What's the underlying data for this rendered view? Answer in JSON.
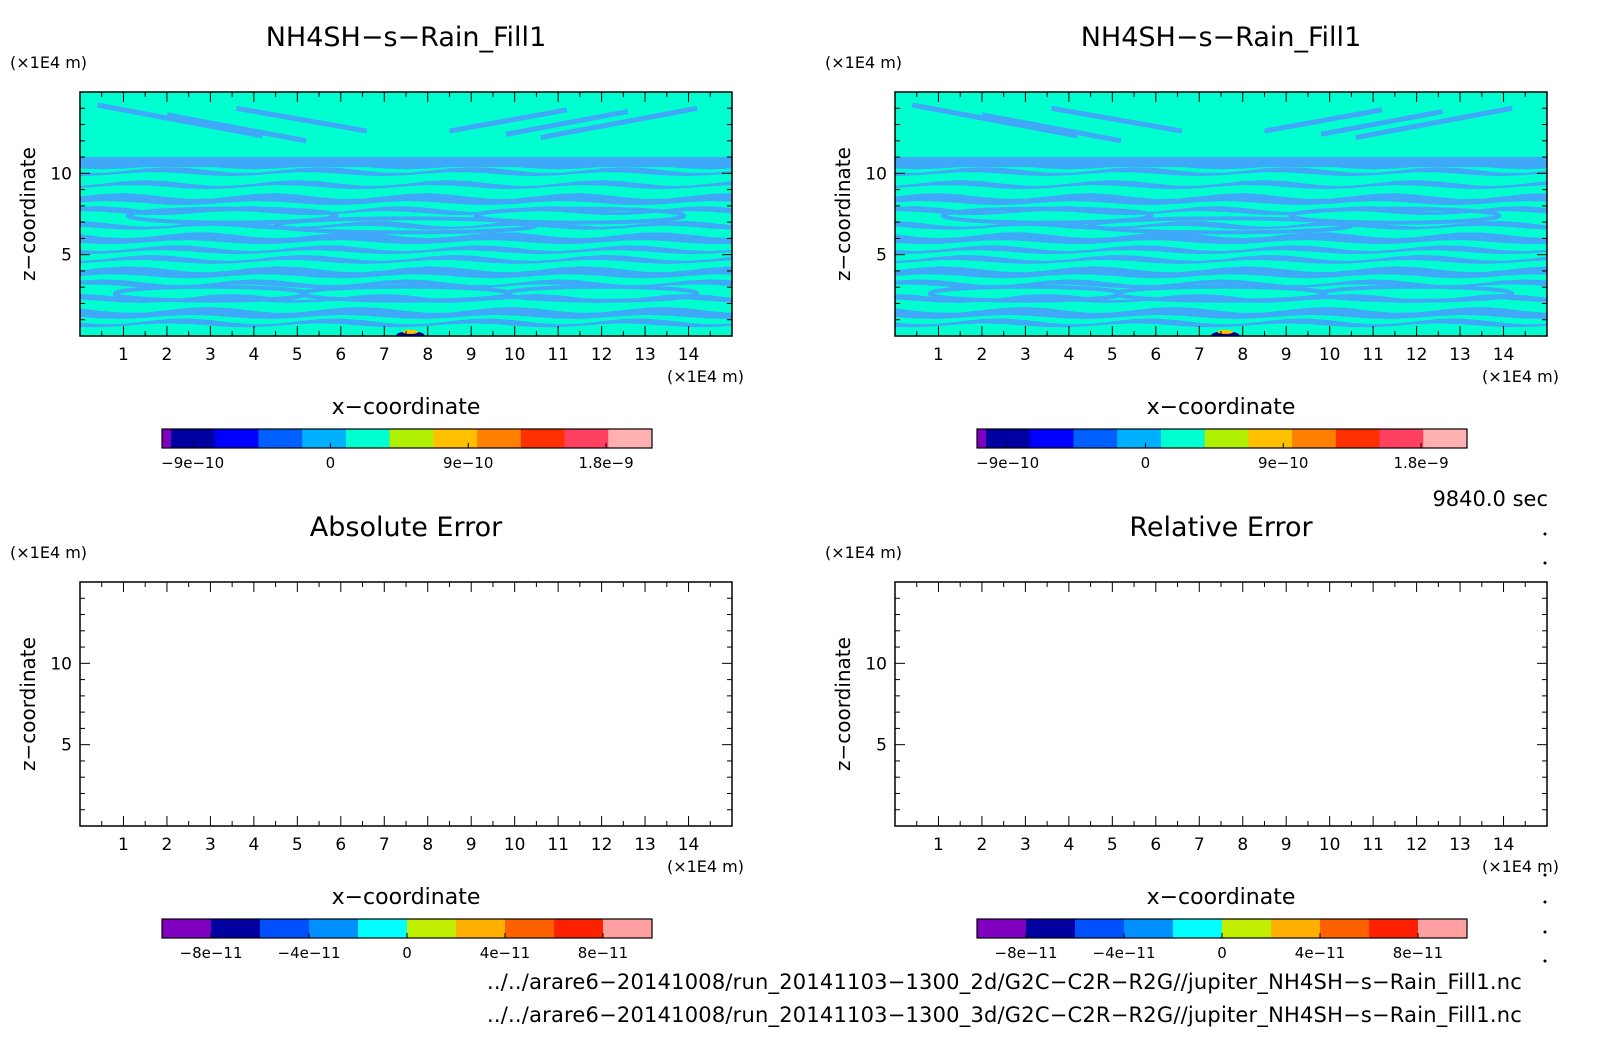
{
  "panels": [
    {
      "title": "NH4SH−s−Rain_Fill1",
      "xlabel": "x−coordinate",
      "ylabel": "z−coordinate",
      "x_unit": "(×1E4 m)",
      "y_unit": "(×1E4 m)",
      "x_ticks": [
        "1",
        "2",
        "3",
        "4",
        "5",
        "6",
        "7",
        "8",
        "9",
        "10",
        "11",
        "12",
        "13",
        "14"
      ],
      "y_ticks": [
        "5",
        "10"
      ],
      "filled": true,
      "colorbar_labels": [
        "−9e−10",
        "0",
        "9e−10",
        "1.8e−9"
      ]
    },
    {
      "title": "NH4SH−s−Rain_Fill1",
      "xlabel": "x−coordinate",
      "ylabel": "z−coordinate",
      "x_unit": "(×1E4 m)",
      "y_unit": "(×1E4 m)",
      "x_ticks": [
        "1",
        "2",
        "3",
        "4",
        "5",
        "6",
        "7",
        "8",
        "9",
        "10",
        "11",
        "12",
        "13",
        "14"
      ],
      "y_ticks": [
        "5",
        "10"
      ],
      "filled": true,
      "colorbar_labels": [
        "−9e−10",
        "0",
        "9e−10",
        "1.8e−9"
      ]
    },
    {
      "title": "Absolute Error",
      "xlabel": "x−coordinate",
      "ylabel": "z−coordinate",
      "x_unit": "(×1E4 m)",
      "y_unit": "(×1E4 m)",
      "x_ticks": [
        "1",
        "2",
        "3",
        "4",
        "5",
        "6",
        "7",
        "8",
        "9",
        "10",
        "11",
        "12",
        "13",
        "14"
      ],
      "y_ticks": [
        "5",
        "10"
      ],
      "filled": false,
      "colorbar_labels": [
        "−8e−11",
        "−4e−11",
        "0",
        "4e−11",
        "8e−11"
      ]
    },
    {
      "title": "Relative Error",
      "xlabel": "x−coordinate",
      "ylabel": "z−coordinate",
      "x_unit": "(×1E4 m)",
      "y_unit": "(×1E4 m)",
      "x_ticks": [
        "1",
        "2",
        "3",
        "4",
        "5",
        "6",
        "7",
        "8",
        "9",
        "10",
        "11",
        "12",
        "13",
        "14"
      ],
      "y_ticks": [
        "5",
        "10"
      ],
      "filled": false,
      "colorbar_labels": [
        "−8e−11",
        "−4e−11",
        "0",
        "4e−11",
        "8e−11"
      ]
    }
  ],
  "time_label": "9840.0 sec",
  "file_paths": [
    "../../arare6−20141008/run_20141103−1300_2d/G2C−C2R−R2G//jupiter_NH4SH−s−Rain_Fill1.nc",
    "../../arare6−20141008/run_20141103−1300_3d/G2C−C2R−R2G//jupiter_NH4SH−s−Rain_Fill1.nc"
  ],
  "colors": {
    "field_teal": "#00ffd0",
    "field_blue": "#40a8f8",
    "colorbar_top": [
      "#8000c0",
      "#0000a0",
      "#0000ff",
      "#0060ff",
      "#00b0ff",
      "#00ffd0",
      "#b0f000",
      "#ffc000",
      "#ff8000",
      "#ff3000",
      "#ff4060",
      "#ffb0b0"
    ],
    "colorbar_bottom": [
      "#8000c0",
      "#0000a0",
      "#0050ff",
      "#0090ff",
      "#00ffff",
      "#c0f000",
      "#ffb000",
      "#ff6000",
      "#ff2000",
      "#ffa0a0"
    ]
  },
  "chart_data": [
    {
      "type": "heatmap",
      "title": "NH4SH−s−Rain_Fill1",
      "xlabel": "x−coordinate",
      "ylabel": "z−coordinate",
      "xlim": [
        0,
        15
      ],
      "ylim": [
        0,
        15
      ],
      "colorbar_range": [
        -1.1e-09,
        2.1e-09
      ],
      "colorbar_ticks": [
        -9e-10,
        0,
        9e-10,
        1.8e-09
      ],
      "dominant_value": 0,
      "field_description_bands_z": [
        10.8,
        10.2,
        9.4,
        8.6,
        7.8,
        6.9,
        6.2,
        5.4,
        4.8,
        4.1,
        3.3,
        2.4,
        1.6,
        0.9
      ]
    },
    {
      "type": "heatmap",
      "title": "NH4SH−s−Rain_Fill1",
      "xlabel": "x−coordinate",
      "ylabel": "z−coordinate",
      "xlim": [
        0,
        15
      ],
      "ylim": [
        0,
        15
      ],
      "colorbar_range": [
        -1.1e-09,
        2.1e-09
      ],
      "colorbar_ticks": [
        -9e-10,
        0,
        9e-10,
        1.8e-09
      ],
      "dominant_value": 0,
      "field_description_bands_z": [
        10.8,
        10.2,
        9.4,
        8.6,
        7.8,
        6.9,
        6.2,
        5.4,
        4.8,
        4.1,
        3.3,
        2.4,
        1.6,
        0.9
      ]
    },
    {
      "type": "heatmap",
      "title": "Absolute Error",
      "xlabel": "x−coordinate",
      "ylabel": "z−coordinate",
      "xlim": [
        0,
        15
      ],
      "ylim": [
        0,
        15
      ],
      "colorbar_range": [
        -1e-10,
        1e-10
      ],
      "colorbar_ticks": [
        -8e-11,
        -4e-11,
        0,
        4e-11,
        8e-11
      ],
      "values": []
    },
    {
      "type": "heatmap",
      "title": "Relative Error",
      "xlabel": "x−coordinate",
      "ylabel": "z−coordinate",
      "xlim": [
        0,
        15
      ],
      "ylim": [
        0,
        15
      ],
      "colorbar_range": [
        -1e-10,
        1e-10
      ],
      "colorbar_ticks": [
        -8e-11,
        -4e-11,
        0,
        4e-11,
        8e-11
      ],
      "values": []
    }
  ]
}
